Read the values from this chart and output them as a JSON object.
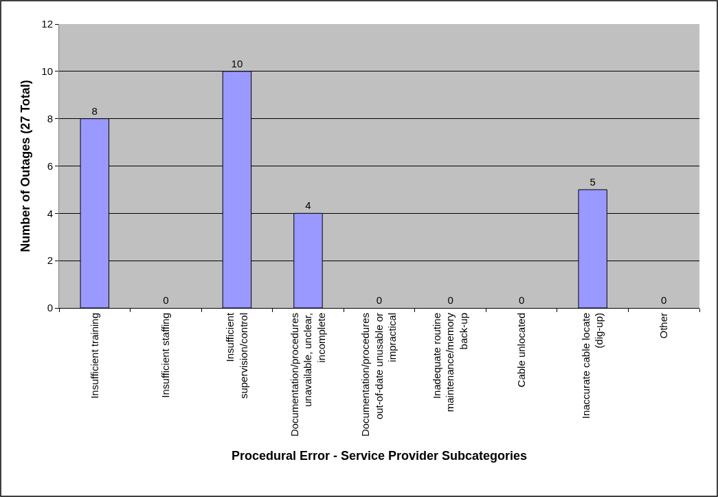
{
  "chart_data": {
    "type": "bar",
    "xlabel": "Procedural Error - Service Provider Subcategories",
    "ylabel": "Number of Outages (27 Total)",
    "categories": [
      "Insufficient training",
      "Insufficient staffing",
      "Insufficient supervision/control",
      "Documentation/procedures unavailable, unclear, incomplete",
      "Documentation/procedures out-of-date unusable or impractical",
      "Inadequate routine maintenance/memory back-up",
      "Cable unlocated",
      "Inaccurate cable locate (dig-up)",
      "Other"
    ],
    "values": [
      8,
      0,
      10,
      4,
      0,
      0,
      0,
      5,
      0
    ],
    "color": "#9999ff",
    "ylim": [
      0,
      12
    ],
    "yticks": [
      0,
      2,
      4,
      6,
      8,
      10,
      12
    ],
    "grid": "y",
    "data_labels": true
  }
}
